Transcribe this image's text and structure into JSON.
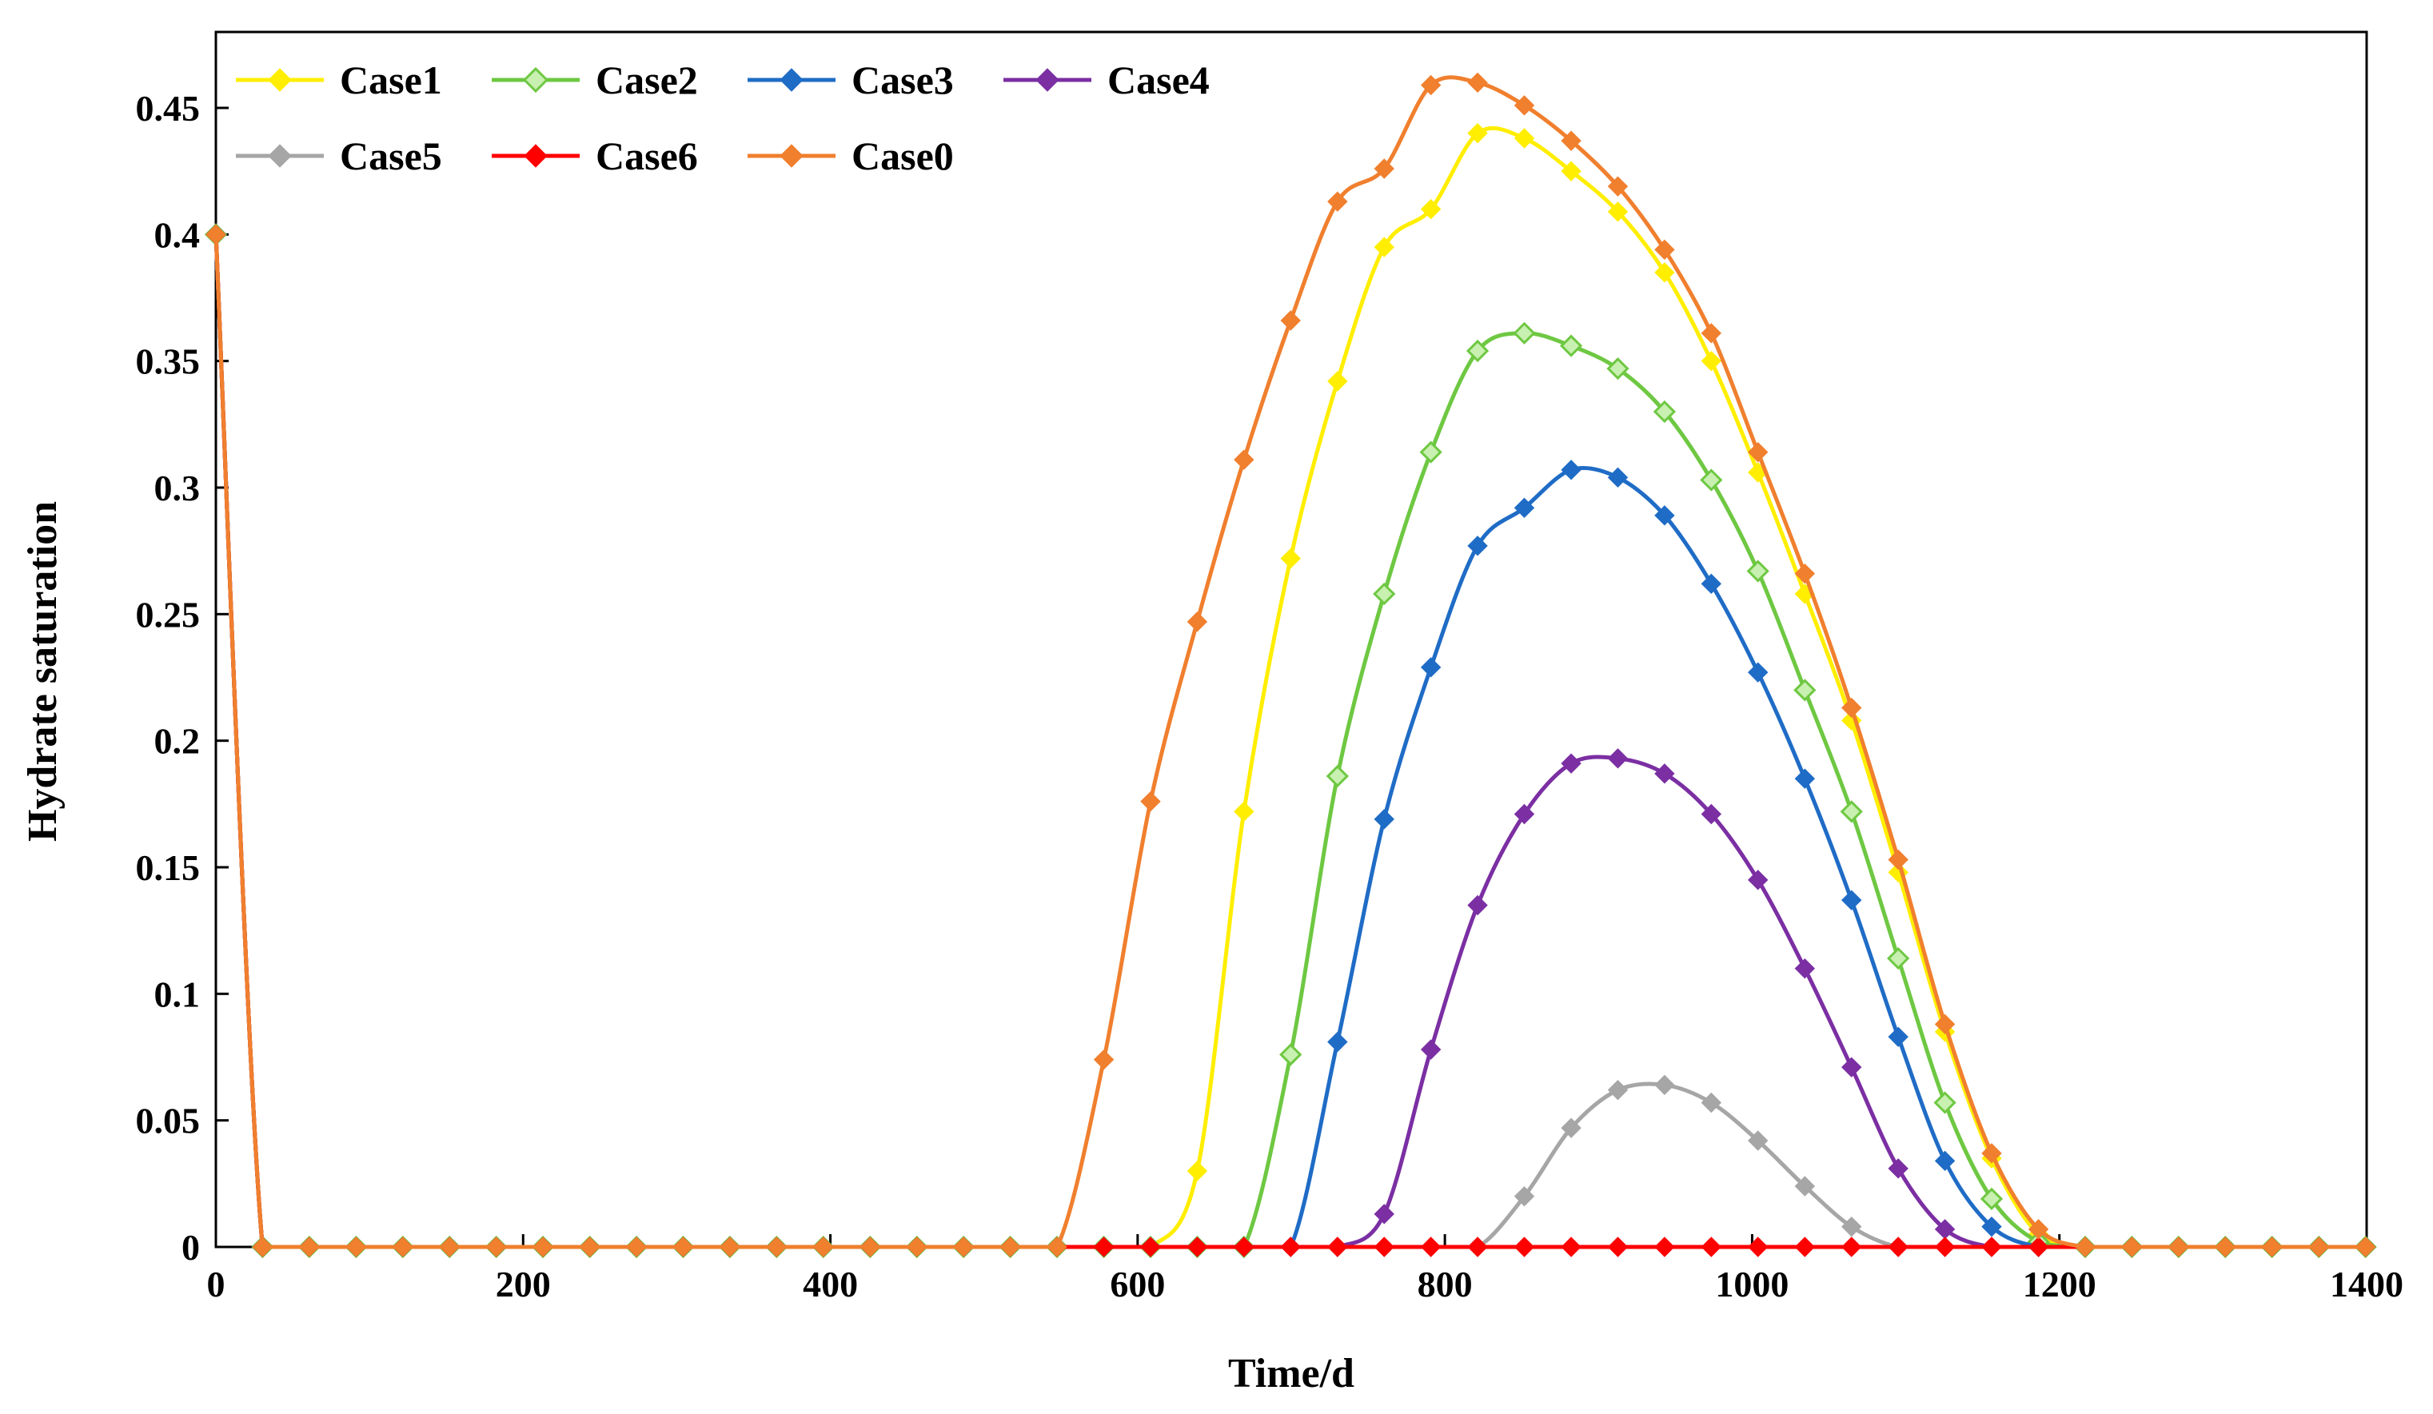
{
  "chart_data": {
    "type": "line",
    "title": "",
    "xlabel": "Time/d",
    "ylabel": "Hydrate saturation",
    "xlim": [
      0,
      1400
    ],
    "ylim": [
      0,
      0.48
    ],
    "xticks": [
      0,
      200,
      400,
      600,
      800,
      1000,
      1200,
      1400
    ],
    "xtick_labels": [
      "0",
      "200",
      "400",
      "600",
      "800",
      "1000",
      "1200",
      "1400"
    ],
    "yticks": [
      0,
      0.05,
      0.1,
      0.15,
      0.2,
      0.25,
      0.3,
      0.35,
      0.4,
      0.45
    ],
    "ytick_labels": [
      "0",
      "0.05",
      "0.1",
      "0.15",
      "0.2",
      "0.25",
      "0.3",
      "0.35",
      "0.4",
      "0.45"
    ],
    "grid": false,
    "legend_position": "top-left",
    "x": [
      0,
      30.4,
      60.8,
      91.3,
      121.7,
      152.1,
      182.5,
      212.9,
      243.4,
      273.8,
      304.2,
      334.6,
      365,
      395.4,
      425.9,
      456.3,
      486.7,
      517.1,
      547.5,
      578,
      608.4,
      638.8,
      669.2,
      699.6,
      730.1,
      760.5,
      790.9,
      821.3,
      851.7,
      882.2,
      912.6,
      943,
      973.4,
      1003.8,
      1034.3,
      1064.7,
      1095.1,
      1125.5,
      1155.9,
      1186.4,
      1216.8,
      1247.2,
      1277.6,
      1308,
      1338.4,
      1368.9,
      1399.3
    ],
    "series": [
      {
        "name": "Case1",
        "color": "#ffee00",
        "marker": "diamond-filled",
        "values": [
          0.4,
          0,
          0,
          0,
          0,
          0,
          0,
          0,
          0,
          0,
          0,
          0,
          0,
          0,
          0,
          0,
          0,
          0,
          0,
          0,
          0,
          0.03,
          0.172,
          0.272,
          0.342,
          0.395,
          0.41,
          0.44,
          0.438,
          0.425,
          0.409,
          0.385,
          0.35,
          0.306,
          0.258,
          0.208,
          0.148,
          0.085,
          0.035,
          0.005,
          0,
          0,
          0,
          0,
          0,
          0,
          0
        ]
      },
      {
        "name": "Case2",
        "color": "#6ec842",
        "marker": "diamond-hollow",
        "values": [
          0.4,
          0,
          0,
          0,
          0,
          0,
          0,
          0,
          0,
          0,
          0,
          0,
          0,
          0,
          0,
          0,
          0,
          0,
          0,
          0,
          0,
          0,
          0,
          0.076,
          0.186,
          0.258,
          0.314,
          0.354,
          0.361,
          0.356,
          0.347,
          0.33,
          0.303,
          0.267,
          0.22,
          0.172,
          0.114,
          0.057,
          0.019,
          0.002,
          0,
          0,
          0,
          0,
          0,
          0,
          0
        ]
      },
      {
        "name": "Case3",
        "color": "#1f6cc6",
        "marker": "diamond-filled",
        "values": [
          0.4,
          0,
          0,
          0,
          0,
          0,
          0,
          0,
          0,
          0,
          0,
          0,
          0,
          0,
          0,
          0,
          0,
          0,
          0,
          0,
          0,
          0,
          0,
          0,
          0.081,
          0.169,
          0.229,
          0.277,
          0.292,
          0.307,
          0.304,
          0.289,
          0.262,
          0.227,
          0.185,
          0.137,
          0.083,
          0.034,
          0.008,
          0,
          0,
          0,
          0,
          0,
          0,
          0,
          0
        ]
      },
      {
        "name": "Case4",
        "color": "#7b2fa3",
        "marker": "diamond-filled",
        "values": [
          0.4,
          0,
          0,
          0,
          0,
          0,
          0,
          0,
          0,
          0,
          0,
          0,
          0,
          0,
          0,
          0,
          0,
          0,
          0,
          0,
          0,
          0,
          0,
          0,
          0,
          0.013,
          0.078,
          0.135,
          0.171,
          0.191,
          0.193,
          0.187,
          0.171,
          0.145,
          0.11,
          0.071,
          0.031,
          0.007,
          0,
          0,
          0,
          0,
          0,
          0,
          0,
          0,
          0
        ]
      },
      {
        "name": "Case5",
        "color": "#a6a6a6",
        "marker": "diamond-filled",
        "values": [
          0.4,
          0,
          0,
          0,
          0,
          0,
          0,
          0,
          0,
          0,
          0,
          0,
          0,
          0,
          0,
          0,
          0,
          0,
          0,
          0,
          0,
          0,
          0,
          0,
          0,
          0,
          0,
          0,
          0.02,
          0.047,
          0.062,
          0.064,
          0.057,
          0.042,
          0.024,
          0.008,
          0,
          0,
          0,
          0,
          0,
          0,
          0,
          0,
          0,
          0,
          0
        ]
      },
      {
        "name": "Case6",
        "color": "#ff0000",
        "marker": "diamond-filled",
        "values": [
          0.4,
          0,
          0,
          0,
          0,
          0,
          0,
          0,
          0,
          0,
          0,
          0,
          0,
          0,
          0,
          0,
          0,
          0,
          0,
          0,
          0,
          0,
          0,
          0,
          0,
          0,
          0,
          0,
          0,
          0,
          0,
          0,
          0,
          0,
          0,
          0,
          0,
          0,
          0,
          0,
          0,
          0,
          0,
          0,
          0,
          0,
          0
        ]
      },
      {
        "name": "Case0",
        "color": "#f07f2e",
        "marker": "diamond-filled",
        "values": [
          0.4,
          0,
          0,
          0,
          0,
          0,
          0,
          0,
          0,
          0,
          0,
          0,
          0,
          0,
          0,
          0,
          0,
          0,
          0,
          0.074,
          0.176,
          0.247,
          0.311,
          0.366,
          0.413,
          0.426,
          0.459,
          0.46,
          0.451,
          0.437,
          0.419,
          0.394,
          0.361,
          0.314,
          0.266,
          0.213,
          0.153,
          0.088,
          0.037,
          0.007,
          0,
          0,
          0,
          0,
          0,
          0,
          0
        ]
      }
    ]
  }
}
